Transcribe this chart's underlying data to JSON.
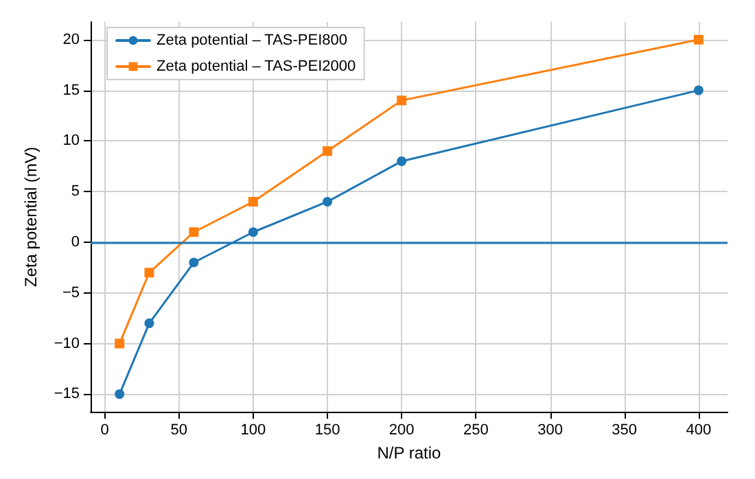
{
  "chart_data": {
    "type": "line",
    "xlabel": "N/P ratio",
    "ylabel": "Zeta potential (mV)",
    "x": [
      10,
      30,
      60,
      100,
      150,
      200,
      400
    ],
    "series": [
      {
        "name": "Zeta potential – TAS-PEI800",
        "color": "#1f77b4",
        "marker": "circle",
        "values": [
          -15,
          -8,
          -2,
          1,
          4,
          8,
          15
        ]
      },
      {
        "name": "Zeta potential – TAS-PEI2000",
        "color": "#ff7f0e",
        "marker": "square",
        "values": [
          -10,
          -3,
          1,
          4,
          9,
          14,
          20
        ]
      }
    ],
    "xlim": [
      -9.5,
      419.5
    ],
    "xticks": [
      0,
      50,
      100,
      150,
      200,
      250,
      300,
      350,
      400
    ],
    "ylim": [
      -16.75,
      21.75
    ],
    "yticks": [
      -15,
      -10,
      -5,
      0,
      5,
      10,
      15,
      20
    ],
    "ref_lines": [
      {
        "axis": "y",
        "value": 0,
        "color": "#1f77b4"
      }
    ],
    "grid": true,
    "legend": "top left",
    "line_style": "solid"
  }
}
